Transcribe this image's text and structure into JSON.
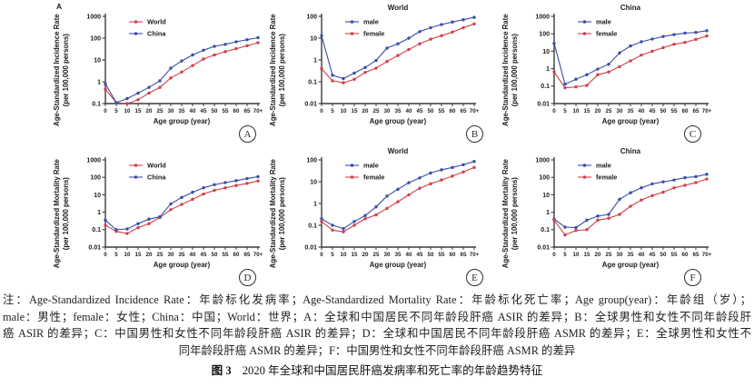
{
  "colors": {
    "red": "#d0404a",
    "blue": "#3b4da8",
    "axis": "#3b3b3b",
    "text": "#1b1b1b"
  },
  "figure": {
    "panel_a_corner_label": "A",
    "caption": {
      "note_lines": [
        "注：Age-Standardized Incidence Rate：年龄标化发病率；Age-Standardized Mortality Rate：年龄标化死亡率；Age group(year)：年龄组（岁）；",
        "male：男性；female：女性；China：中国；World：世界；A：全球和中国居民不同年龄段肝癌 ASIR 的差异；B：全球男性和女性不同年龄段肝",
        "癌 ASIR 的差异；C：中国男性和女性不同年龄段肝癌 ASIR 的差异；D：全球和中国居民不同年龄段肝癌 ASMR 的差异；E：全球男性和女性不",
        "同年龄段肝癌 ASMR 的差异；F：中国男性和女性不同年龄段肝癌 ASMR 的差异"
      ],
      "figure_label": "图 3",
      "figure_title": "2020 年全球和中国居民肝癌发病率和死亡率的年龄趋势特征"
    }
  },
  "chart_data": [
    {
      "type": "line",
      "panel_label": "A",
      "title": "",
      "ylabel": "Age-Standardized Incidence Rate",
      "ylabel_sub": "(per 100,000 persons)",
      "xlabel": "Age group (year)",
      "log_scale": true,
      "ylim": [
        0.1,
        1000
      ],
      "ytick_labels": [
        "0.1",
        "1",
        "10",
        "100",
        "1000"
      ],
      "legend_position": "top-left-inside",
      "categories": [
        "0",
        "5",
        "10",
        "15",
        "20",
        "25",
        "30",
        "35",
        "40",
        "45",
        "50",
        "55",
        "60",
        "65",
        "70+"
      ],
      "series": [
        {
          "name": "World",
          "color": "#d0404a",
          "values": [
            0.45,
            0.11,
            0.1,
            0.15,
            0.3,
            0.55,
            1.5,
            2.8,
            5.5,
            11,
            17,
            24,
            33,
            45,
            62
          ]
        },
        {
          "name": "China",
          "color": "#3b4da8",
          "values": [
            0.8,
            0.11,
            0.17,
            0.3,
            0.55,
            1.1,
            4.2,
            9,
            17,
            28,
            42,
            52,
            68,
            85,
            105
          ]
        }
      ]
    },
    {
      "type": "line",
      "panel_label": "B",
      "title": "World",
      "ylabel": "Age-Standardized Incidence Rate",
      "ylabel_sub": "(per 100,000 persons)",
      "xlabel": "Age group (year)",
      "log_scale": true,
      "ylim": [
        0.01,
        100
      ],
      "ytick_labels": [
        "0.01",
        "0.1",
        "1",
        "10",
        "100"
      ],
      "legend_position": "top-left-inside",
      "categories": [
        "0",
        "5",
        "10",
        "15",
        "20",
        "25",
        "30",
        "35",
        "40",
        "45",
        "50",
        "55",
        "60",
        "65",
        "70+"
      ],
      "series": [
        {
          "name": "male",
          "color": "#3b4da8",
          "values": [
            13,
            0.2,
            0.14,
            0.25,
            0.45,
            0.95,
            3.5,
            5.5,
            10,
            20,
            30,
            42,
            55,
            70,
            90
          ]
        },
        {
          "name": "female",
          "color": "#d0404a",
          "values": [
            0.4,
            0.11,
            0.09,
            0.13,
            0.27,
            0.42,
            0.85,
            1.6,
            3.0,
            5.5,
            9,
            13,
            19,
            30,
            45
          ]
        }
      ]
    },
    {
      "type": "line",
      "panel_label": "C",
      "title": "China",
      "ylabel": "Age-Standardized Incidence Rate",
      "ylabel_sub": "(per 100,000 persons)",
      "xlabel": "Age group (year)",
      "log_scale": true,
      "ylim": [
        0.01,
        1000
      ],
      "ytick_labels": [
        "0.01",
        "0.1",
        "1",
        "10",
        "100",
        "1000"
      ],
      "legend_position": "top-left-inside",
      "categories": [
        "0",
        "5",
        "10",
        "15",
        "20",
        "25",
        "30",
        "35",
        "40",
        "45",
        "50",
        "55",
        "60",
        "65",
        "70+"
      ],
      "series": [
        {
          "name": "male",
          "color": "#3b4da8",
          "values": [
            28,
            0.13,
            0.25,
            0.45,
            0.95,
            1.8,
            8,
            20,
            35,
            50,
            70,
            90,
            110,
            120,
            150
          ]
        },
        {
          "name": "female",
          "color": "#d0404a",
          "values": [
            0.65,
            0.08,
            0.09,
            0.11,
            0.45,
            0.65,
            1.3,
            2.8,
            6,
            10,
            16,
            25,
            32,
            48,
            75
          ]
        }
      ]
    },
    {
      "type": "line",
      "panel_label": "D",
      "title": "",
      "ylabel": "Age-Standardized Mortality Rate",
      "ylabel_sub": "(per 100,000 persons)",
      "xlabel": "Age group (year)",
      "log_scale": true,
      "ylim": [
        0.01,
        1000
      ],
      "ytick_labels": [
        "0.01",
        "0.1",
        "1",
        "10",
        "100",
        "1000"
      ],
      "legend_position": "top-left-inside",
      "categories": [
        "0",
        "5",
        "10",
        "15",
        "20",
        "25",
        "30",
        "35",
        "40",
        "45",
        "50",
        "55",
        "60",
        "65",
        "70+"
      ],
      "series": [
        {
          "name": "World",
          "color": "#d0404a",
          "values": [
            0.18,
            0.08,
            0.06,
            0.13,
            0.22,
            0.5,
            1.4,
            2.8,
            5.5,
            11,
            18,
            25,
            34,
            45,
            62
          ]
        },
        {
          "name": "China",
          "color": "#3b4da8",
          "values": [
            0.35,
            0.1,
            0.11,
            0.22,
            0.4,
            0.55,
            3.0,
            7,
            14,
            25,
            38,
            50,
            65,
            85,
            110
          ]
        }
      ]
    },
    {
      "type": "line",
      "panel_label": "E",
      "title": "World",
      "ylabel": "Age-Standardized Mortality Rate",
      "ylabel_sub": "(per 100,000 persons)",
      "xlabel": "Age group (year)",
      "log_scale": true,
      "ylim": [
        0.01,
        100
      ],
      "ytick_labels": [
        "0.01",
        "0.1",
        "1",
        "10",
        "100"
      ],
      "legend_position": "top-left-inside",
      "categories": [
        "0",
        "5",
        "10",
        "15",
        "20",
        "25",
        "30",
        "35",
        "40",
        "45",
        "50",
        "55",
        "60",
        "65",
        "70+"
      ],
      "series": [
        {
          "name": "male",
          "color": "#3b4da8",
          "values": [
            0.2,
            0.1,
            0.07,
            0.15,
            0.28,
            0.7,
            2.2,
            4.5,
            9,
            15,
            25,
            35,
            45,
            60,
            85
          ]
        },
        {
          "name": "female",
          "color": "#d0404a",
          "values": [
            0.15,
            0.06,
            0.05,
            0.1,
            0.2,
            0.3,
            0.6,
            1.2,
            2.5,
            5,
            8,
            12,
            18,
            28,
            45
          ]
        }
      ]
    },
    {
      "type": "line",
      "panel_label": "F",
      "title": "China",
      "ylabel": "Age-Standardized Mortality Rate",
      "ylabel_sub": "(per 100,000 persons)",
      "xlabel": "Age group (year)",
      "log_scale": true,
      "ylim": [
        0.01,
        1000
      ],
      "ytick_labels": [
        "0.01",
        "0.1",
        "1",
        "10",
        "100",
        "1000"
      ],
      "legend_position": "top-left-inside",
      "categories": [
        "0",
        "5",
        "10",
        "15",
        "20",
        "25",
        "30",
        "35",
        "40",
        "45",
        "50",
        "55",
        "60",
        "65",
        "70+"
      ],
      "series": [
        {
          "name": "male",
          "color": "#3b4da8",
          "values": [
            0.4,
            0.14,
            0.13,
            0.35,
            0.6,
            0.75,
            5.5,
            13,
            25,
            42,
            55,
            70,
            95,
            110,
            150
          ]
        },
        {
          "name": "female",
          "color": "#d0404a",
          "values": [
            0.35,
            0.05,
            0.09,
            0.1,
            0.35,
            0.45,
            0.75,
            2.2,
            5,
            9,
            14,
            25,
            35,
            50,
            80
          ]
        }
      ]
    }
  ]
}
